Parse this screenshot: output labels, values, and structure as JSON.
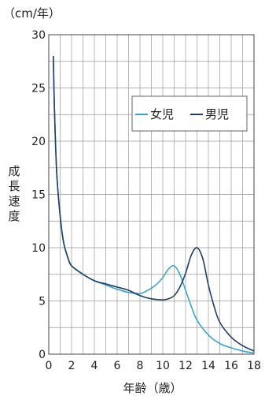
{
  "chart_data": {
    "type": "line",
    "title": "",
    "unit_label": "（cm/年）",
    "xlabel": "年齢（歳）",
    "ylabel": "成長速度",
    "xlim": [
      0,
      18
    ],
    "ylim": [
      0,
      30
    ],
    "x_ticks": [
      "0",
      "2",
      "4",
      "6",
      "8",
      "10",
      "12",
      "14",
      "16",
      "18"
    ],
    "y_ticks": [
      "0",
      "5",
      "10",
      "15",
      "20",
      "25",
      "30"
    ],
    "grid": true,
    "legend_position": "top-right",
    "series": [
      {
        "name": "女児",
        "color": "#3aa6c9",
        "points": [
          [
            0.4,
            28
          ],
          [
            0.5,
            23
          ],
          [
            0.7,
            17
          ],
          [
            1,
            13
          ],
          [
            1.3,
            10.5
          ],
          [
            1.7,
            9
          ],
          [
            2,
            8.3
          ],
          [
            3,
            7.5
          ],
          [
            4,
            6.9
          ],
          [
            5,
            6.5
          ],
          [
            6,
            6.1
          ],
          [
            7,
            5.8
          ],
          [
            8,
            5.7
          ],
          [
            8.5,
            5.9
          ],
          [
            9,
            6.2
          ],
          [
            9.5,
            6.6
          ],
          [
            10,
            7.2
          ],
          [
            10.5,
            8
          ],
          [
            11,
            8.3
          ],
          [
            11.5,
            7.5
          ],
          [
            12,
            6
          ],
          [
            12.5,
            4.5
          ],
          [
            13,
            3.2
          ],
          [
            14,
            1.8
          ],
          [
            15,
            1
          ],
          [
            16,
            0.6
          ],
          [
            17,
            0.3
          ],
          [
            18,
            0.1
          ]
        ]
      },
      {
        "name": "男児",
        "color": "#1f3f66",
        "points": [
          [
            0.4,
            28
          ],
          [
            0.5,
            23
          ],
          [
            0.7,
            17
          ],
          [
            1,
            13
          ],
          [
            1.3,
            10.5
          ],
          [
            1.7,
            9
          ],
          [
            2,
            8.3
          ],
          [
            3,
            7.5
          ],
          [
            4,
            6.9
          ],
          [
            5,
            6.6
          ],
          [
            6,
            6.3
          ],
          [
            7,
            6
          ],
          [
            8,
            5.5
          ],
          [
            9,
            5.2
          ],
          [
            10,
            5.1
          ],
          [
            10.5,
            5.2
          ],
          [
            11,
            5.5
          ],
          [
            11.5,
            6.3
          ],
          [
            12,
            7.6
          ],
          [
            12.5,
            9.3
          ],
          [
            13,
            10
          ],
          [
            13.5,
            9
          ],
          [
            14,
            6.5
          ],
          [
            14.5,
            4.5
          ],
          [
            15,
            3
          ],
          [
            16,
            1.6
          ],
          [
            17,
            0.8
          ],
          [
            18,
            0.3
          ]
        ]
      }
    ]
  }
}
